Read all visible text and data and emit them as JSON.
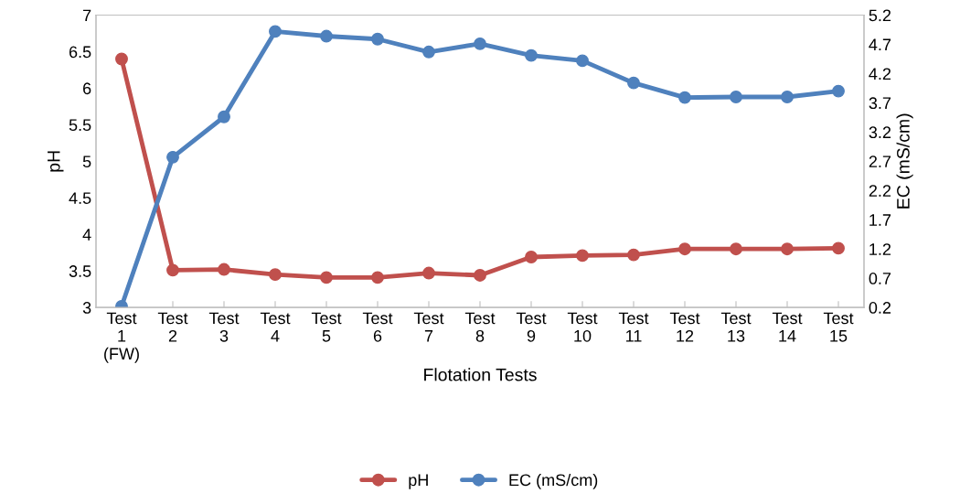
{
  "chart_data": {
    "type": "line",
    "xlabel": "Flotation Tests",
    "ylabel": "pH",
    "y2label": "EC (mS/cm)",
    "categories": [
      "Test\n1\n(FW)",
      "Test\n2",
      "Test\n3",
      "Test\n4",
      "Test\n5",
      "Test\n6",
      "Test\n7",
      "Test\n8",
      "Test\n9",
      "Test\n10",
      "Test\n11",
      "Test\n12",
      "Test\n13",
      "Test\n14",
      "Test\n15"
    ],
    "series": [
      {
        "name": "pH",
        "color": "#c0504d",
        "values": [
          6.4,
          3.51,
          3.52,
          3.45,
          3.41,
          3.41,
          3.47,
          3.44,
          3.69,
          3.71,
          3.72,
          3.8,
          3.8,
          3.8,
          3.81
        ]
      },
      {
        "name": "EC (mS/cm)",
        "color": "#4f81bd",
        "axis": "y2",
        "values": [
          0.22,
          2.77,
          3.46,
          4.92,
          4.84,
          4.79,
          4.57,
          4.71,
          4.51,
          4.42,
          4.04,
          3.79,
          3.8,
          3.8,
          3.9
        ]
      }
    ],
    "ylim": [
      3,
      7
    ],
    "yticks": [
      3,
      3.5,
      4,
      4.5,
      5,
      5.5,
      6,
      6.5,
      7
    ],
    "y2lim": [
      0.2,
      5.2
    ],
    "y2ticks": [
      0.2,
      0.7,
      1.2,
      1.7,
      2.2,
      2.7,
      3.2,
      3.7,
      4.2,
      4.7,
      5.2
    ],
    "grid": false,
    "legend": "bottom",
    "marker": "circle",
    "line_style": "solid"
  }
}
